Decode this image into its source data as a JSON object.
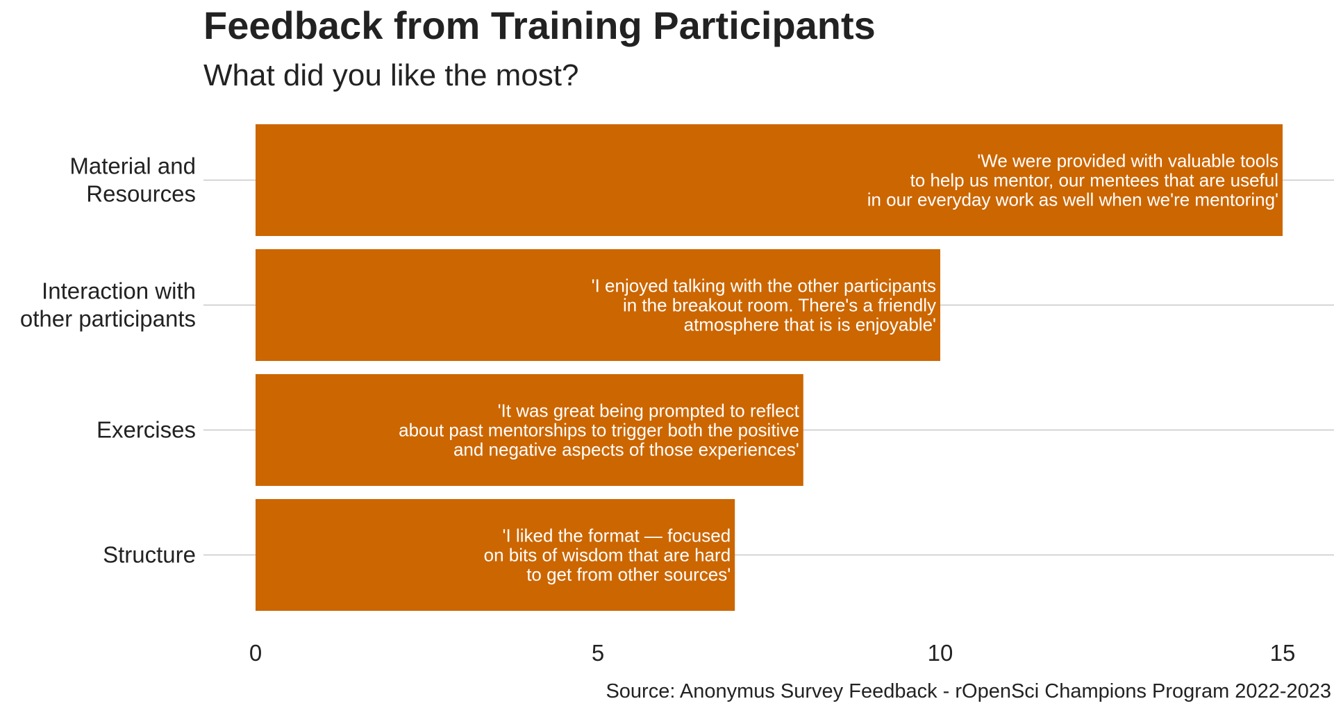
{
  "chart_data": {
    "type": "bar",
    "orientation": "horizontal",
    "title": "Feedback from Training Participants",
    "subtitle": "What did you like the most?",
    "caption": "Source: Anonymus Survey Feedback - rOpenSci Champions Program 2022-2023",
    "categories": [
      "Material and Resources",
      "Interaction with other participants",
      "Exercises",
      "Structure"
    ],
    "category_label_lines": [
      [
        "Material and",
        "Resources"
      ],
      [
        "Interaction with",
        "other participants"
      ],
      [
        "Exercises"
      ],
      [
        "Structure"
      ]
    ],
    "values": [
      15,
      10,
      8,
      7
    ],
    "quotes": [
      [
        "'We were provided with valuable tools",
        "to help us mentor, our mentees that are useful",
        "in our everyday work as well when we're mentoring'"
      ],
      [
        "'I enjoyed talking with the other participants",
        "in the breakout room. There's a friendly",
        "atmosphere that is is enjoyable'"
      ],
      [
        "'It was great being prompted to reflect",
        "about past mentorships to trigger both the positive",
        "and negative aspects of those experiences'"
      ],
      [
        "'I liked the format — focused",
        "on bits of wisdom that are hard",
        "to get from other sources'"
      ]
    ],
    "xlim": [
      0,
      15
    ],
    "xticks": [
      0,
      5,
      10,
      15
    ],
    "xlabel": "",
    "ylabel": "",
    "grid": "horizontal gridlines at categories",
    "legend": "none",
    "colors": {
      "bar": "#cc6600",
      "quote_text": "#ffffff",
      "grid": "#c8c8c8",
      "text": "#222222"
    }
  }
}
